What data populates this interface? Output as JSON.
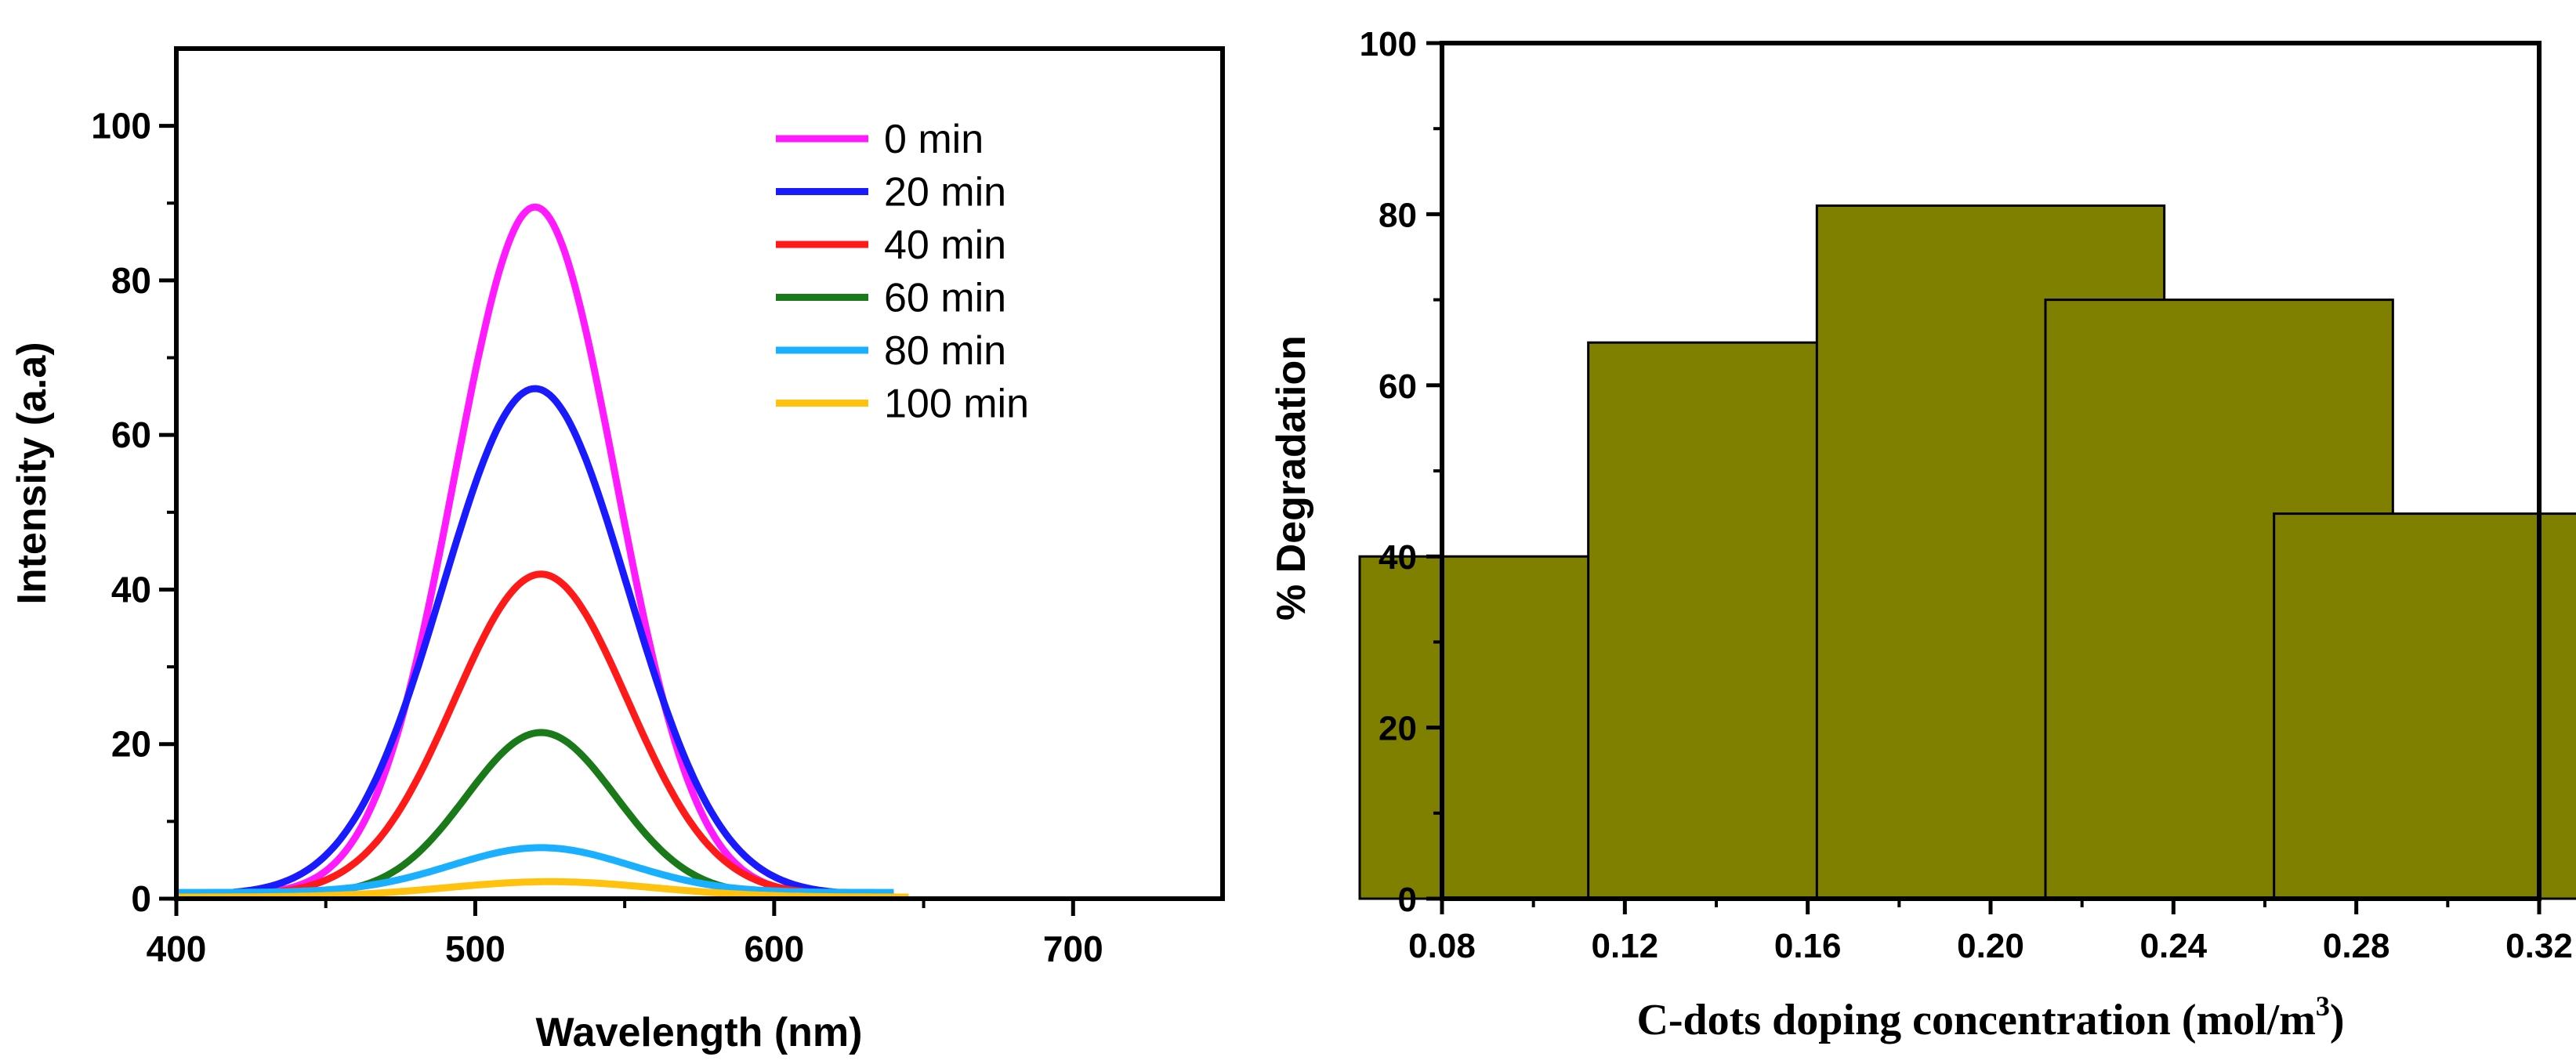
{
  "chart_data": [
    {
      "type": "line",
      "xlabel": "Wavelength (nm)",
      "ylabel": "Intensity (a.a)",
      "xlim": [
        400,
        750
      ],
      "ylim": [
        0,
        110
      ],
      "xticks": [
        400,
        500,
        600,
        700
      ],
      "yticks": [
        0,
        20,
        40,
        60,
        80,
        100
      ],
      "legend_position": "top-right",
      "series": [
        {
          "name": " 0 min",
          "color": "#ff1aff",
          "peak": 520,
          "amplitude": 89,
          "sigma": 27,
          "baseline": 0.5,
          "range": [
            400,
            640
          ]
        },
        {
          "name": "20 min",
          "color": "#1a1aff",
          "peak": 520,
          "amplitude": 65.5,
          "sigma": 31,
          "baseline": 0.5,
          "range": [
            400,
            640
          ]
        },
        {
          "name": "40 min",
          "color": "#ff1a1a",
          "peak": 522,
          "amplitude": 41.5,
          "sigma": 29,
          "baseline": 0.5,
          "range": [
            400,
            640
          ]
        },
        {
          "name": "60 min",
          "color": "#1a7a1a",
          "peak": 522,
          "amplitude": 21,
          "sigma": 25,
          "baseline": 0.5,
          "range": [
            400,
            640
          ]
        },
        {
          "name": "80 min",
          "color": "#1ab0ff",
          "peak": 522,
          "amplitude": 5.8,
          "sigma": 30,
          "baseline": 0.8,
          "range": [
            400,
            640
          ]
        },
        {
          "name": "100 min",
          "color": "#ffc20e",
          "peak": 525,
          "amplitude": 2,
          "sigma": 35,
          "baseline": 0.2,
          "range": [
            400,
            645
          ]
        }
      ]
    },
    {
      "type": "bar",
      "xlabel_main": "C-dots doping concentration (mol/m",
      "xlabel_sup": "3",
      "xlabel_end": ")",
      "ylabel": "% Degradation",
      "xlim": [
        0.08,
        0.32
      ],
      "ylim": [
        0,
        100
      ],
      "xticks": [
        "0.08",
        "0.12",
        "0.16",
        "0.20",
        "0.24",
        "0.28",
        "0.32"
      ],
      "yticks": [
        0,
        20,
        40,
        60,
        80,
        100
      ],
      "bar_color": "#808000",
      "bars": [
        {
          "x": 0.1,
          "value": 40
        },
        {
          "x": 0.15,
          "value": 65
        },
        {
          "x": 0.2,
          "value": 81
        },
        {
          "x": 0.25,
          "value": 70
        },
        {
          "x": 0.3,
          "value": 45
        }
      ]
    }
  ]
}
